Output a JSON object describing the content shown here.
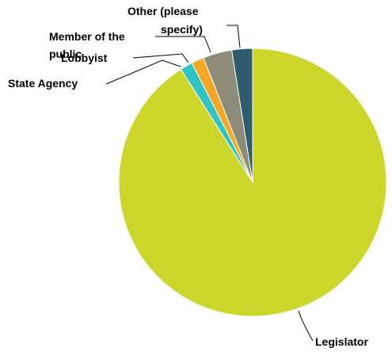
{
  "chart_data": {
    "type": "pie",
    "title": "",
    "slices": [
      {
        "label": "Legislator",
        "value": 91,
        "color": "#CDD62B"
      },
      {
        "label": "State Agency",
        "value": 1.5,
        "color": "#2EC4C4"
      },
      {
        "label": "Lobbyist",
        "value": 1.5,
        "color": "#F5A623"
      },
      {
        "label": "Member of the public",
        "value": 3.5,
        "color": "#8C8C78"
      },
      {
        "label": "Other (please specify)",
        "value": 2.5,
        "color": "#2F5D6E"
      }
    ],
    "legend": "none",
    "start": "12 o'clock, counter-clockwise"
  },
  "labels": {
    "legislator": "Legislator",
    "state_agency": "State Agency",
    "lobbyist": "Lobbyist",
    "member_line1": "Member of the",
    "member_line2": "public",
    "other_line1": "Other (please",
    "other_line2": "specify)"
  }
}
